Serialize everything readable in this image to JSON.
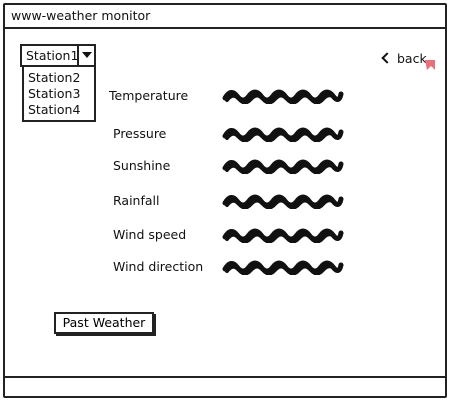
{
  "window": {
    "title": "www-weather monitor"
  },
  "station_selector": {
    "selected": "Station1",
    "options": [
      "Station2",
      "Station3",
      "Station4"
    ]
  },
  "nav": {
    "back_label": "back"
  },
  "readings": [
    {
      "label": "Temperature"
    },
    {
      "label": "Pressure"
    },
    {
      "label": "Sunshine"
    },
    {
      "label": "Rainfall"
    },
    {
      "label": "Wind speed"
    },
    {
      "label": "Wind direction"
    }
  ],
  "actions": {
    "past_weather_label": "Past Weather"
  },
  "colors": {
    "ink": "#111111",
    "cursor_accent": "#e8707a"
  }
}
